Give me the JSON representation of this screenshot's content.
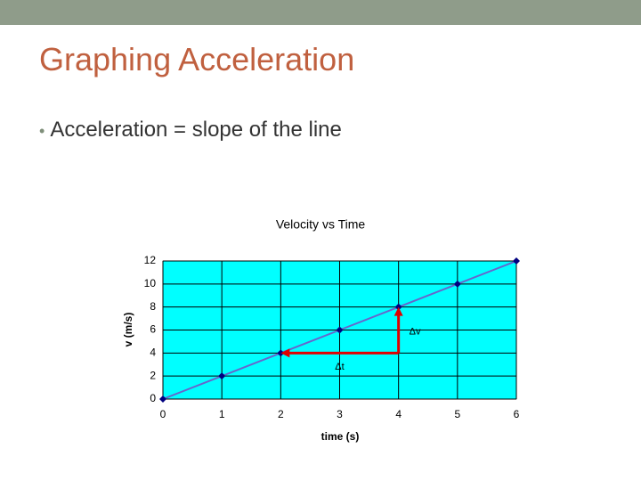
{
  "title": "Graphing Acceleration",
  "bullets": [
    "Acceleration = slope of the line"
  ],
  "chart_data": {
    "type": "line",
    "title": "Velocity vs Time",
    "x_label": "time (s)",
    "y_label": "v (m/s)",
    "x": [
      0,
      1,
      2,
      3,
      4,
      5,
      6
    ],
    "series": [
      {
        "name": "v",
        "color": "#6666cc",
        "marker_color": "#000080",
        "values": [
          0,
          2,
          4,
          6,
          8,
          10,
          12
        ]
      }
    ],
    "xlim": [
      0,
      6
    ],
    "ylim": [
      0,
      12
    ],
    "xticks": [
      0,
      1,
      2,
      3,
      4,
      5,
      6
    ],
    "yticks": [
      0,
      2,
      4,
      6,
      8,
      10,
      12
    ],
    "grid": true,
    "plot_background": "#00ffff",
    "annotations": [
      "Δv",
      "Δt"
    ]
  }
}
